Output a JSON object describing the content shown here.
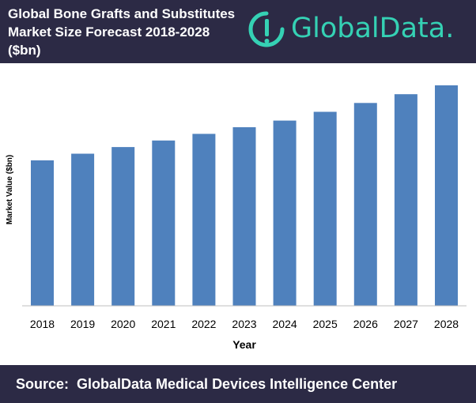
{
  "header": {
    "title_lines": [
      "Global Bone Grafts and Substitutes",
      "Market Size Forecast 2018-2028",
      "($bn)"
    ],
    "brand": "GlobalData.",
    "brand_icon": "globaldata-logo-icon"
  },
  "chart_data": {
    "type": "bar",
    "categories": [
      "2018",
      "2019",
      "2020",
      "2021",
      "2022",
      "2023",
      "2024",
      "2025",
      "2026",
      "2027",
      "2028"
    ],
    "values": [
      0.66,
      0.69,
      0.72,
      0.75,
      0.78,
      0.81,
      0.84,
      0.88,
      0.92,
      0.96,
      1.0
    ],
    "xlabel": "Year",
    "ylabel": "Market Value ($bn)",
    "ylim": [
      0,
      1.0
    ],
    "y_ticks_shown": false,
    "grid": false,
    "bar_color": "#4f81bd"
  },
  "footer": {
    "source": "Source:  GlobalData Medical Devices Intelligence Center"
  },
  "colors": {
    "header_bg": "#2c2a45",
    "brand": "#35d1b4",
    "bar": "#4f81bd"
  }
}
